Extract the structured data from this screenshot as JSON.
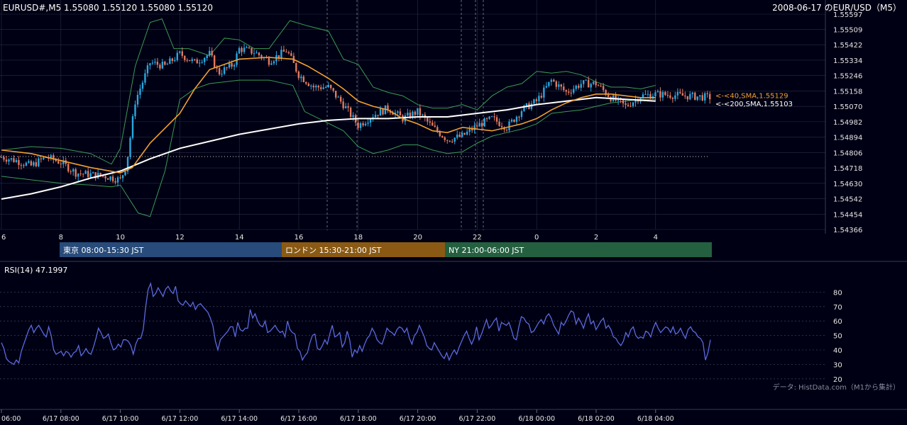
{
  "header": {
    "symbol_info": "EURUSD#,M5 1.55080 1.55120 1.55080 1.55120",
    "title": "2008-06-17 のEUR/USD（M5）"
  },
  "colors": {
    "background": "#000014",
    "grid": "#2a2a44",
    "candle_up": "#2aa8e0",
    "candle_down": "#e07a5f",
    "sma40": "#f0a030",
    "sma200": "#ffffff",
    "bollinger": "#3a9a55",
    "rsi": "#5a6ae0",
    "session_tokyo": "#274b7a",
    "session_london": "#8a5a14",
    "session_ny": "#246040"
  },
  "chart_data": [
    {
      "type": "candlestick",
      "name": "price",
      "y_ticks": [
        "1.55597",
        "1.55509",
        "1.55422",
        "1.55334",
        "1.55246",
        "1.55158",
        "1.55070",
        "1.54982",
        "1.54894",
        "1.54806",
        "1.54718",
        "1.54630",
        "1.54542",
        "1.54454",
        "1.54366"
      ],
      "ylim": [
        1.54366,
        1.55597
      ],
      "x_ticks": [
        "6",
        "8",
        "10",
        "12",
        "14",
        "16",
        "18",
        "20",
        "22",
        "0",
        "2",
        "4"
      ],
      "reference_line": 1.54783,
      "indicators": [
        {
          "label": "<-<40,SMA,1.55129",
          "value": 1.55129
        },
        {
          "label": "<-<200,SMA,1.55103",
          "value": 1.55103
        }
      ],
      "sma40_path": [
        [
          0,
          1.5482
        ],
        [
          1,
          1.548
        ],
        [
          2,
          1.5476
        ],
        [
          3,
          1.5472
        ],
        [
          4,
          1.5469
        ],
        [
          4.4,
          1.5472
        ],
        [
          5,
          1.5486
        ],
        [
          6,
          1.5503
        ],
        [
          6.5,
          1.5517
        ],
        [
          7,
          1.5528
        ],
        [
          7.5,
          1.5531
        ],
        [
          8,
          1.5534
        ],
        [
          9,
          1.5535
        ],
        [
          9.8,
          1.5534
        ],
        [
          10.3,
          1.553
        ],
        [
          11,
          1.5523
        ],
        [
          11.5,
          1.5517
        ],
        [
          12,
          1.551
        ],
        [
          12.5,
          1.5507
        ],
        [
          13,
          1.5505
        ],
        [
          13.5,
          1.55
        ],
        [
          14,
          1.5497
        ],
        [
          14.5,
          1.5493
        ],
        [
          15,
          1.5492
        ],
        [
          15.5,
          1.5495
        ],
        [
          16,
          1.5494
        ],
        [
          16.5,
          1.5493
        ],
        [
          17,
          1.5495
        ],
        [
          17.5,
          1.5497
        ],
        [
          18,
          1.55
        ],
        [
          18.5,
          1.5505
        ],
        [
          19,
          1.5509
        ],
        [
          19.5,
          1.5512
        ],
        [
          20,
          1.5514
        ],
        [
          20.5,
          1.5514
        ],
        [
          21,
          1.5513
        ],
        [
          21.5,
          1.5512
        ],
        [
          22,
          1.5512
        ]
      ],
      "sma200_path": [
        [
          0,
          1.5454
        ],
        [
          1,
          1.5457
        ],
        [
          2,
          1.5461
        ],
        [
          3,
          1.5466
        ],
        [
          4,
          1.547
        ],
        [
          5,
          1.5477
        ],
        [
          6,
          1.5483
        ],
        [
          7,
          1.5487
        ],
        [
          8,
          1.5491
        ],
        [
          9,
          1.5494
        ],
        [
          10,
          1.5497
        ],
        [
          11,
          1.5499
        ],
        [
          12,
          1.55
        ],
        [
          13,
          1.55
        ],
        [
          14,
          1.5501
        ],
        [
          15,
          1.5501
        ],
        [
          16,
          1.5503
        ],
        [
          17,
          1.5505
        ],
        [
          18,
          1.5508
        ],
        [
          19,
          1.551
        ],
        [
          20,
          1.5512
        ],
        [
          21,
          1.5511
        ],
        [
          22,
          1.551
        ]
      ],
      "bb_upper_path": [
        [
          0,
          1.5482
        ],
        [
          1,
          1.5484
        ],
        [
          2,
          1.5483
        ],
        [
          3,
          1.548
        ],
        [
          3.7,
          1.5474
        ],
        [
          4,
          1.5483
        ],
        [
          4.5,
          1.553
        ],
        [
          5,
          1.5555
        ],
        [
          5.4,
          1.5557
        ],
        [
          5.8,
          1.554
        ],
        [
          6.3,
          1.554
        ],
        [
          7,
          1.5536
        ],
        [
          7.5,
          1.5546
        ],
        [
          8,
          1.5545
        ],
        [
          8.5,
          1.554
        ],
        [
          9,
          1.554
        ],
        [
          9.7,
          1.5556
        ],
        [
          10.3,
          1.5553
        ],
        [
          11,
          1.555
        ],
        [
          11.5,
          1.5534
        ],
        [
          12,
          1.5531
        ],
        [
          12.5,
          1.5518
        ],
        [
          13,
          1.5515
        ],
        [
          13.5,
          1.5513
        ],
        [
          14,
          1.5508
        ],
        [
          14.5,
          1.5506
        ],
        [
          15,
          1.5506
        ],
        [
          15.5,
          1.5508
        ],
        [
          16,
          1.5505
        ],
        [
          16.5,
          1.5513
        ],
        [
          17,
          1.5518
        ],
        [
          17.5,
          1.552
        ],
        [
          18,
          1.5527
        ],
        [
          18.5,
          1.5526
        ],
        [
          19,
          1.5527
        ],
        [
          19.5,
          1.5525
        ],
        [
          20,
          1.5521
        ],
        [
          20.5,
          1.5518
        ],
        [
          21,
          1.5518
        ],
        [
          21.5,
          1.5517
        ],
        [
          22,
          1.5519
        ]
      ],
      "bb_lower_path": [
        [
          0,
          1.5467
        ],
        [
          1,
          1.5465
        ],
        [
          2,
          1.5463
        ],
        [
          3,
          1.5462
        ],
        [
          3.7,
          1.5461
        ],
        [
          4,
          1.5462
        ],
        [
          4.6,
          1.5446
        ],
        [
          5,
          1.5444
        ],
        [
          5.5,
          1.547
        ],
        [
          6,
          1.5511
        ],
        [
          6.5,
          1.5517
        ],
        [
          7,
          1.552
        ],
        [
          7.5,
          1.5521
        ],
        [
          8,
          1.5522
        ],
        [
          9,
          1.5522
        ],
        [
          9.8,
          1.5519
        ],
        [
          10.2,
          1.5504
        ],
        [
          10.8,
          1.5499
        ],
        [
          11.5,
          1.5493
        ],
        [
          12,
          1.5484
        ],
        [
          12.5,
          1.548
        ],
        [
          13,
          1.5482
        ],
        [
          13.5,
          1.5485
        ],
        [
          14,
          1.5485
        ],
        [
          14.5,
          1.5482
        ],
        [
          15,
          1.548
        ],
        [
          15.5,
          1.5481
        ],
        [
          16,
          1.5486
        ],
        [
          16.5,
          1.549
        ],
        [
          17,
          1.5492
        ],
        [
          17.5,
          1.5494
        ],
        [
          18,
          1.5497
        ],
        [
          18.5,
          1.5503
        ],
        [
          19,
          1.5504
        ],
        [
          19.5,
          1.5505
        ],
        [
          20,
          1.5507
        ],
        [
          20.5,
          1.5509
        ],
        [
          21,
          1.551
        ],
        [
          21.5,
          1.5511
        ],
        [
          22,
          1.5511
        ]
      ],
      "price_path": [
        [
          0,
          1.5478
        ],
        [
          0.5,
          1.5476
        ],
        [
          1,
          1.5473
        ],
        [
          1.5,
          1.5478
        ],
        [
          2,
          1.5475
        ],
        [
          2.5,
          1.5469
        ],
        [
          3,
          1.5468
        ],
        [
          3.5,
          1.5467
        ],
        [
          4,
          1.5465
        ],
        [
          4.2,
          1.5473
        ],
        [
          4.5,
          1.551
        ],
        [
          5,
          1.5532
        ],
        [
          5.5,
          1.553
        ],
        [
          6,
          1.5537
        ],
        [
          6.5,
          1.5532
        ],
        [
          7,
          1.5537
        ],
        [
          7.3,
          1.5526
        ],
        [
          7.8,
          1.5531
        ],
        [
          8,
          1.554
        ],
        [
          8.5,
          1.5538
        ],
        [
          9,
          1.5533
        ],
        [
          9.6,
          1.5539
        ],
        [
          10,
          1.5525
        ],
        [
          10.5,
          1.5518
        ],
        [
          11,
          1.5518
        ],
        [
          11.5,
          1.5508
        ],
        [
          12,
          1.5496
        ],
        [
          12.5,
          1.5502
        ],
        [
          13,
          1.5506
        ],
        [
          13.5,
          1.55
        ],
        [
          14,
          1.5504
        ],
        [
          14.5,
          1.5495
        ],
        [
          15,
          1.5488
        ],
        [
          15.5,
          1.549
        ],
        [
          16,
          1.5496
        ],
        [
          16.5,
          1.55
        ],
        [
          17,
          1.5495
        ],
        [
          17.5,
          1.5505
        ],
        [
          18,
          1.551
        ],
        [
          18.5,
          1.5522
        ],
        [
          19,
          1.5515
        ],
        [
          19.5,
          1.552
        ],
        [
          20,
          1.552
        ],
        [
          20.5,
          1.5512
        ],
        [
          21,
          1.5507
        ],
        [
          21.5,
          1.5513
        ],
        [
          22,
          1.5514
        ],
        [
          23,
          1.5513
        ],
        [
          24,
          1.5512
        ]
      ]
    },
    {
      "type": "line",
      "name": "RSI(14)",
      "label": "RSI(14) 47.1997",
      "y_ticks": [
        80,
        70,
        60,
        50,
        40,
        30,
        20
      ],
      "ylim": [
        15,
        90
      ],
      "values": [
        45,
        41,
        34,
        32,
        31,
        30,
        33,
        31,
        39,
        44,
        49,
        54,
        57,
        52,
        55,
        57,
        54,
        51,
        49,
        56,
        50,
        40,
        37,
        38,
        39,
        36,
        39,
        38,
        35,
        38,
        39,
        43,
        36,
        38,
        41,
        38,
        37,
        42,
        48,
        55,
        52,
        48,
        49,
        51,
        45,
        40,
        41,
        44,
        42,
        47,
        47,
        46,
        43,
        37,
        44,
        48,
        48,
        54,
        70,
        82,
        86,
        77,
        79,
        83,
        80,
        77,
        82,
        84,
        81,
        79,
        84,
        74,
        72,
        71,
        74,
        72,
        70,
        73,
        68,
        71,
        72,
        70,
        68,
        66,
        62,
        57,
        46,
        40,
        47,
        49,
        51,
        53,
        56,
        56,
        49,
        59,
        54,
        53,
        55,
        55,
        68,
        62,
        65,
        60,
        57,
        56,
        60,
        52,
        53,
        55,
        57,
        54,
        52,
        53,
        49,
        60,
        54,
        52,
        51,
        41,
        39,
        33,
        36,
        38,
        45,
        50,
        51,
        41,
        40,
        43,
        47,
        44,
        51,
        57,
        49,
        50,
        52,
        42,
        45,
        53,
        47,
        35,
        40,
        38,
        43,
        39,
        44,
        48,
        50,
        55,
        52,
        47,
        45,
        44,
        49,
        55,
        53,
        52,
        50,
        54,
        56,
        55,
        52,
        55,
        48,
        44,
        50,
        52,
        57,
        53,
        49,
        43,
        41,
        40,
        45,
        42,
        39,
        36,
        34,
        38,
        33,
        37,
        40,
        37,
        42,
        46,
        50,
        53,
        48,
        44,
        48,
        56,
        47,
        51,
        56,
        61,
        55,
        57,
        60,
        62,
        53,
        59,
        58,
        57,
        59,
        54,
        48,
        47,
        56,
        63,
        62,
        59,
        58,
        52,
        53,
        56,
        59,
        61,
        58,
        63,
        65,
        62,
        57,
        54,
        51,
        59,
        57,
        60,
        64,
        67,
        66,
        58,
        62,
        59,
        55,
        61,
        65,
        58,
        60,
        54,
        57,
        60,
        62,
        55,
        57,
        54,
        49,
        48,
        45,
        43,
        46,
        52,
        49,
        54,
        56,
        50,
        48,
        49,
        48,
        53,
        52,
        49,
        55,
        59,
        55,
        52,
        54,
        56,
        55,
        52,
        56,
        51,
        52,
        55,
        51,
        48,
        54,
        56,
        53,
        52,
        49,
        48,
        45,
        33,
        38,
        47
      ]
    },
    {
      "type": "table",
      "name": "sessions",
      "items": [
        {
          "label": "東京 08:00-15:30 JST"
        },
        {
          "label": "ロンドン 15:30-21:00 JST"
        },
        {
          "label": "NY 21:00-06:00 JST"
        }
      ]
    },
    {
      "type": "axis",
      "name": "time_axis",
      "x_ticks": [
        "06:00",
        "6/17 08:00",
        "6/17 10:00",
        "6/17 12:00",
        "6/17 14:00",
        "6/17 16:00",
        "6/17 18:00",
        "6/17 20:00",
        "6/17 22:00",
        "6/18 00:00",
        "6/18 02:00",
        "6/18 04:00"
      ]
    }
  ],
  "footer": {
    "source_note": "データ: HistData.com（M1から集計）"
  }
}
